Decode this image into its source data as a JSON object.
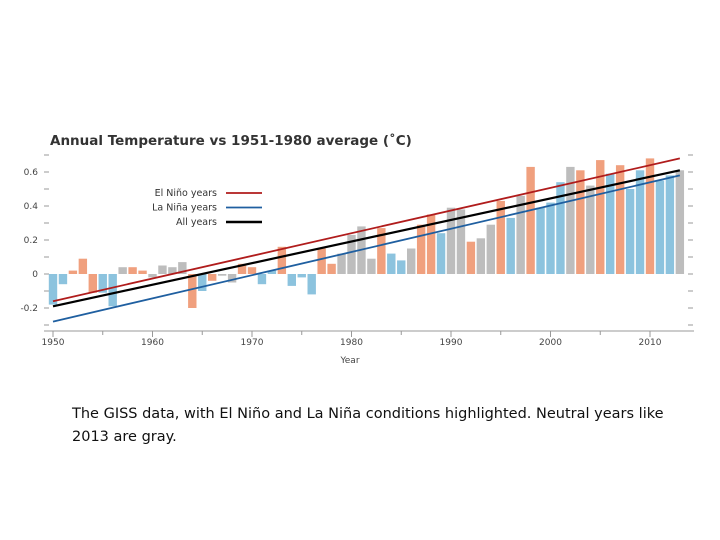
{
  "chart_data": {
    "type": "bar",
    "title": "Annual Temperature vs 1951-1980 average (˚C)",
    "xlabel": "Year",
    "ylabel": "",
    "ylim": [
      -0.3,
      0.7
    ],
    "xlim": [
      1950,
      2013
    ],
    "yticks": [
      "0.6",
      "0.4",
      "0.2",
      "0",
      "-0.2"
    ],
    "xticks": [
      "1950",
      "1960",
      "1970",
      "1980",
      "1990",
      "2000",
      "2010"
    ],
    "grid": false,
    "legend_placement": "upper-left",
    "colors": {
      "el_nino": "#f0a07e",
      "la_nina": "#8cc3de",
      "neutral": "#bdbdbd",
      "el_nino_line": "#b01c1c",
      "la_nina_line": "#1f5fa0",
      "all_line": "#000000"
    },
    "years": [
      1950,
      1951,
      1952,
      1953,
      1954,
      1955,
      1956,
      1957,
      1958,
      1959,
      1960,
      1961,
      1962,
      1963,
      1964,
      1965,
      1966,
      1967,
      1968,
      1969,
      1970,
      1971,
      1972,
      1973,
      1974,
      1975,
      1976,
      1977,
      1978,
      1979,
      1980,
      1981,
      1982,
      1983,
      1984,
      1985,
      1986,
      1987,
      1988,
      1989,
      1990,
      1991,
      1992,
      1993,
      1994,
      1995,
      1996,
      1997,
      1998,
      1999,
      2000,
      2001,
      2002,
      2003,
      2004,
      2005,
      2006,
      2007,
      2008,
      2009,
      2010,
      2011,
      2012,
      2013
    ],
    "values": [
      -0.18,
      -0.06,
      0.02,
      0.09,
      -0.11,
      -0.11,
      -0.19,
      0.04,
      0.04,
      0.02,
      -0.02,
      0.05,
      0.04,
      0.07,
      -0.2,
      -0.1,
      -0.04,
      -0.01,
      -0.05,
      0.06,
      0.04,
      -0.06,
      0.02,
      0.16,
      -0.07,
      -0.02,
      -0.12,
      0.15,
      0.06,
      0.12,
      0.23,
      0.28,
      0.09,
      0.27,
      0.12,
      0.08,
      0.15,
      0.29,
      0.35,
      0.24,
      0.39,
      0.38,
      0.19,
      0.21,
      0.29,
      0.43,
      0.33,
      0.46,
      0.63,
      0.39,
      0.42,
      0.54,
      0.63,
      0.61,
      0.52,
      0.67,
      0.59,
      0.64,
      0.5,
      0.61,
      0.68,
      0.55,
      0.58,
      0.61
    ],
    "phase": [
      "L",
      "L",
      "E",
      "E",
      "E",
      "L",
      "L",
      "N",
      "E",
      "E",
      "N",
      "N",
      "N",
      "N",
      "E",
      "L",
      "E",
      "N",
      "N",
      "E",
      "E",
      "L",
      "L",
      "E",
      "L",
      "L",
      "L",
      "E",
      "E",
      "N",
      "N",
      "N",
      "N",
      "E",
      "L",
      "L",
      "N",
      "E",
      "E",
      "L",
      "N",
      "N",
      "E",
      "N",
      "N",
      "E",
      "L",
      "N",
      "E",
      "L",
      "L",
      "L",
      "N",
      "E",
      "N",
      "E",
      "L",
      "E",
      "L",
      "L",
      "E",
      "L",
      "L",
      "N"
    ],
    "series": [
      {
        "name": "El Niño years",
        "type": "trendline",
        "x": [
          1950,
          2013
        ],
        "values": [
          -0.16,
          0.68
        ]
      },
      {
        "name": "La Niña years",
        "type": "trendline",
        "x": [
          1950,
          2013
        ],
        "values": [
          -0.28,
          0.58
        ]
      },
      {
        "name": "All years",
        "type": "trendline",
        "x": [
          1950,
          2013
        ],
        "values": [
          -0.19,
          0.61
        ]
      }
    ]
  },
  "caption": "The GISS data, with El Niño and La Niña conditions highlighted. Neutral years like 2013 are gray."
}
